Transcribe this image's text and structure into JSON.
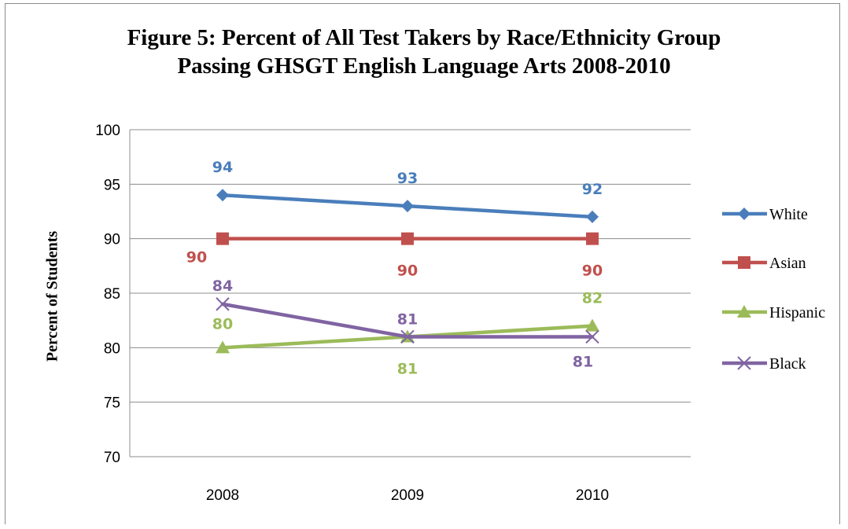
{
  "chart_data": {
    "type": "line",
    "title_line1": "Figure 5: Percent of All Test Takers by Race/Ethnicity Group",
    "title_line2": "Passing GHSGT English Language Arts 2008-2010",
    "xlabel": "",
    "ylabel": "Percent of Students",
    "categories": [
      "2008",
      "2009",
      "2010"
    ],
    "ylim": [
      70,
      100
    ],
    "yticks": [
      70,
      75,
      80,
      85,
      90,
      95,
      100
    ],
    "grid": true,
    "legend_position": "right",
    "series": [
      {
        "name": "White",
        "values": [
          94,
          93,
          92
        ],
        "color": "#4a7ebb",
        "marker": "diamond"
      },
      {
        "name": "Asian",
        "values": [
          90,
          90,
          90
        ],
        "color": "#c0504d",
        "marker": "square"
      },
      {
        "name": "Hispanic",
        "values": [
          80,
          81,
          82
        ],
        "color": "#9bbb59",
        "marker": "triangle"
      },
      {
        "name": "Black",
        "values": [
          84,
          81,
          81
        ],
        "color": "#8064a2",
        "marker": "x"
      }
    ]
  }
}
